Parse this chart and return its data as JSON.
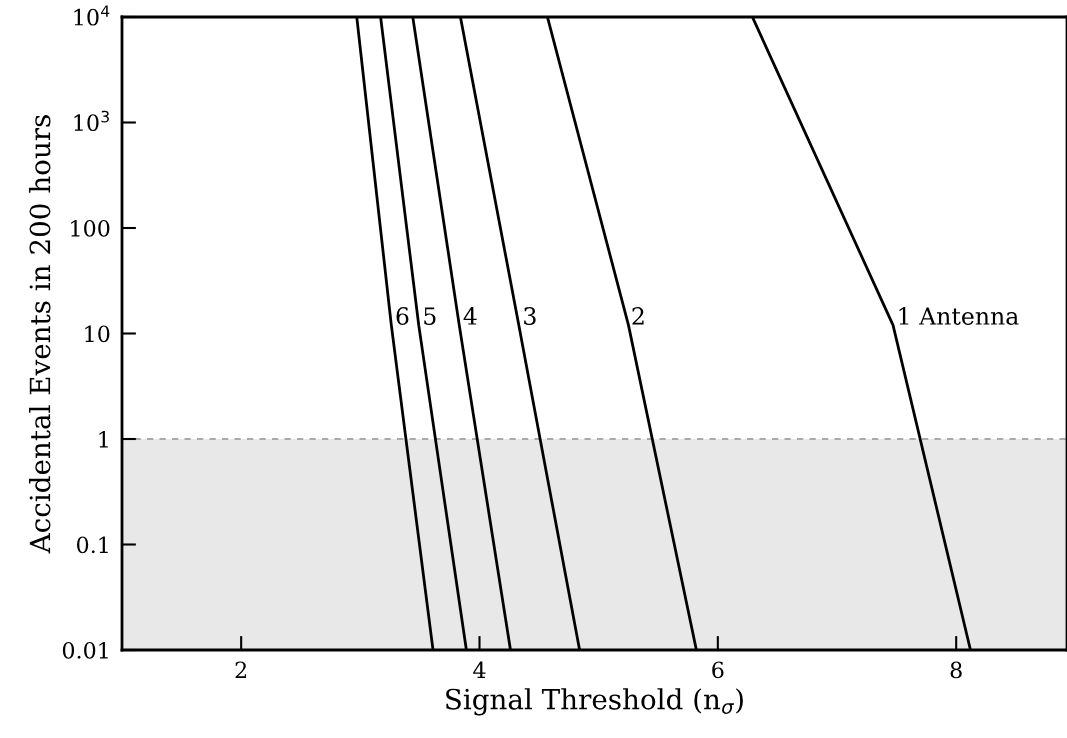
{
  "chart_data": {
    "type": "line",
    "xlabel": "Signal Threshold (n$_{σ}$)",
    "ylabel": "Accidental Events in 200 hours",
    "log": "y",
    "xlim": [
      1,
      8.93
    ],
    "xticks": [
      2,
      4,
      6,
      8
    ],
    "ylim": [
      0.01,
      10000
    ],
    "yticks": [
      {
        "value": 0.01,
        "label": "0.01"
      },
      {
        "value": 0.1,
        "label": "0.1"
      },
      {
        "value": 1,
        "label": "1"
      },
      {
        "value": 10,
        "label": "10"
      },
      {
        "value": 100,
        "label": "100"
      },
      {
        "value": 1000,
        "label": "10$^{3}$"
      },
      {
        "value": 10000,
        "label": "10$^{4}$"
      }
    ],
    "grid": false,
    "legend": false,
    "marker": "none",
    "line_style": "solid",
    "series": [
      {
        "color": "#000000",
        "x": [
          6.29,
          7.47,
          8.12
        ],
        "values": [
          10000,
          12,
          0.01
        ]
      },
      {
        "color": "#000000",
        "x": [
          4.57,
          5.25,
          5.82
        ],
        "values": [
          10000,
          12,
          0.01
        ]
      },
      {
        "color": "#000000",
        "x": [
          3.84,
          4.33,
          4.84
        ],
        "values": [
          10000,
          12,
          0.01
        ]
      },
      {
        "color": "#000000",
        "x": [
          3.44,
          3.83,
          4.26
        ],
        "values": [
          10000,
          12,
          0.01
        ]
      },
      {
        "color": "#000000",
        "x": [
          3.17,
          3.49,
          3.89
        ],
        "values": [
          10000,
          12,
          0.01
        ]
      },
      {
        "color": "#000000",
        "x": [
          2.97,
          3.26,
          3.61
        ],
        "values": [
          10000,
          12,
          0.01
        ]
      }
    ],
    "bands": [
      {
        "axis": "y",
        "from": 0.01,
        "to": 1,
        "color": "#e8e8e8"
      }
    ],
    "ref_lines": [
      {
        "axis": "y",
        "value": 1,
        "color": "#aaaaaa",
        "line_style": "dashed"
      }
    ],
    "annotations": [
      {
        "text": "1 Antenna",
        "x": 7.5,
        "y": 14
      },
      {
        "text": "2",
        "x": 5.27,
        "y": 14
      },
      {
        "text": "3",
        "x": 4.36,
        "y": 14
      },
      {
        "text": "4",
        "x": 3.86,
        "y": 14
      },
      {
        "text": "5",
        "x": 3.52,
        "y": 14
      },
      {
        "text": "6",
        "x": 3.29,
        "y": 14
      }
    ]
  }
}
